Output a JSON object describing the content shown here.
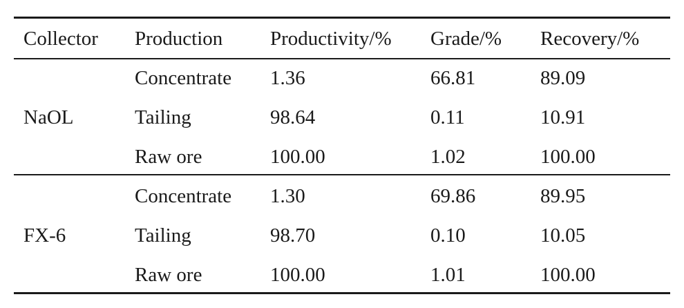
{
  "table": {
    "headers": [
      "Collector",
      "Production",
      "Productivity/%",
      "Grade/%",
      "Recovery/%"
    ],
    "groups": [
      {
        "collector": "NaOL",
        "rows": [
          {
            "production": "Concentrate",
            "productivity": "1.36",
            "grade": "66.81",
            "recovery": "89.09"
          },
          {
            "production": "Tailing",
            "productivity": "98.64",
            "grade": "0.11",
            "recovery": "10.91"
          },
          {
            "production": "Raw ore",
            "productivity": "100.00",
            "grade": "1.02",
            "recovery": "100.00"
          }
        ]
      },
      {
        "collector": "FX-6",
        "rows": [
          {
            "production": "Concentrate",
            "productivity": "1.30",
            "grade": "69.86",
            "recovery": "89.95"
          },
          {
            "production": "Tailing",
            "productivity": "98.70",
            "grade": "0.10",
            "recovery": "10.05"
          },
          {
            "production": "Raw ore",
            "productivity": "100.00",
            "grade": "1.01",
            "recovery": "100.00"
          }
        ]
      }
    ]
  }
}
